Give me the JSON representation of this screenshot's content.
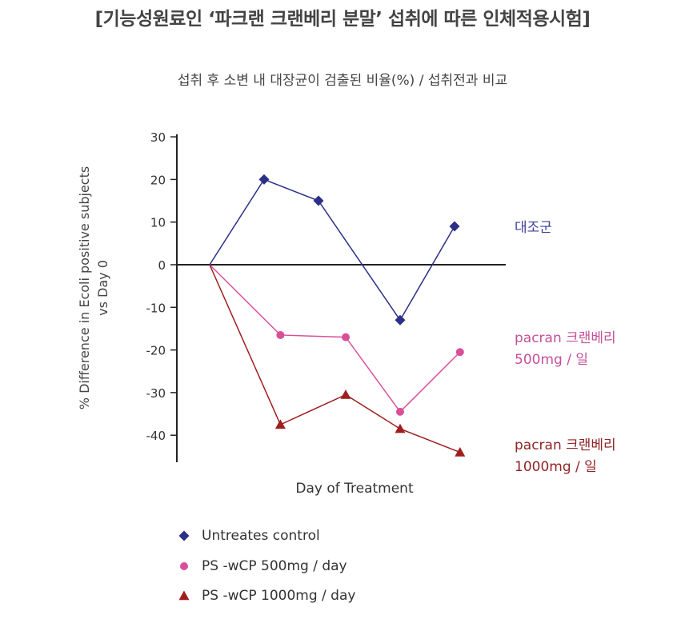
{
  "page": {
    "title": "[기능성원료인 ‘파크랜 크랜베리 분말’ 섭취에 따른 인체적용시험]",
    "subtitle": "섭취 후 소변 내 대장균이 검출된 비율(%)  / 섭취전과 비교"
  },
  "chart_data": {
    "type": "line",
    "xlabel": "Day of Treatment",
    "ylabel": "% Difference in Ecoli positive subjects vs Day 0",
    "ylabel_lines": [
      "% Difference in Ecoli positive subjects",
      "vs Day 0"
    ],
    "ylim": [
      -45,
      30
    ],
    "yticks": [
      30,
      20,
      10,
      0,
      -10,
      -20,
      -30,
      -40
    ],
    "ytick_labels": [
      "30",
      "20",
      "10",
      "0",
      "-10",
      "-20",
      "-30",
      "-40"
    ],
    "grid": false,
    "legend_position": "bottom-left",
    "series": [
      {
        "name": "Untreates control",
        "annotation": "대조군",
        "annotation_lines": [
          "대조군"
        ],
        "marker": "diamond",
        "color": "#2b2f87",
        "annotation_color": "#3c4095",
        "x": [
          0,
          1,
          2,
          3.5,
          4.5
        ],
        "values": [
          0,
          20,
          15,
          -13,
          9
        ]
      },
      {
        "name": "PS -wCP 500mg / day",
        "annotation": "pacran 크랜베리 500mg / 일",
        "annotation_lines": [
          "pacran 크랜베리",
          "500mg / 일"
        ],
        "marker": "circle",
        "color": "#d9509a",
        "annotation_color": "#c4509a",
        "x": [
          0,
          1.3,
          2.5,
          3.5,
          4.6
        ],
        "values": [
          0,
          -16.5,
          -17,
          -34.5,
          -20.5
        ]
      },
      {
        "name": "PS -wCP 1000mg / day",
        "annotation": "pacran 크랜베리 1000mg / 일",
        "annotation_lines": [
          "pacran 크랜베리",
          "1000mg / 일"
        ],
        "marker": "triangle",
        "color": "#a01e1e",
        "annotation_color": "#8f2424",
        "x": [
          0,
          1.3,
          2.5,
          3.5,
          4.6
        ],
        "values": [
          0,
          -37.5,
          -30.5,
          -38.5,
          -44
        ]
      }
    ]
  }
}
